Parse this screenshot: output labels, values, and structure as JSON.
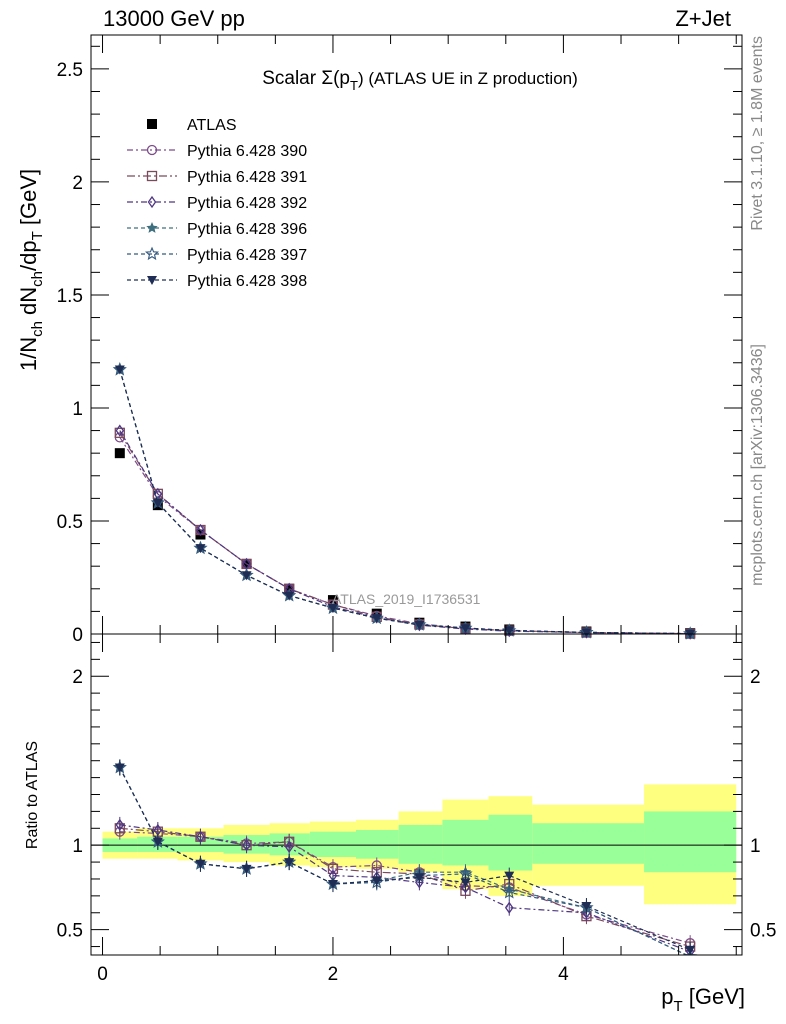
{
  "header": {
    "energy": "13000 GeV pp",
    "process": "Z+Jet",
    "title": "Scalar Σ(p_T) (ATLAS UE in Z production)",
    "title_main": "Scalar Σ(p",
    "title_sub": "T",
    "title_tail": ") (ATLAS UE in Z production)",
    "rivet": "Rivet 3.1.10, ≥ 1.8M events",
    "mcplots": "mcplots.cern.ch [arXiv:1306.3436]",
    "watermark": "ATLAS_2019_I1736531"
  },
  "colors": {
    "data": "#000000",
    "p390": "#7d4b8c",
    "p391": "#7a4a5c",
    "p392": "#4e3682",
    "p396": "#3e6f7f",
    "p397": "#355a7e",
    "p398": "#1f2d55",
    "band_outer": "#ffff7f",
    "band_inner": "#99ff99"
  },
  "chart_data": [
    {
      "type": "line",
      "panel": "main",
      "ylabel": "1/N_ch dN_ch/dp_T [GeV]",
      "ylabel_parts": [
        "1/N",
        "ch",
        " dN",
        "ch",
        "/dp",
        "T",
        " [GeV]"
      ],
      "xlabel": "p_T [GeV]",
      "xlabel_parts": [
        "p",
        "T",
        " [GeV]"
      ],
      "xlim": [
        -0.1,
        5.55
      ],
      "ylim": [
        0,
        2.65
      ],
      "xticks": [
        0,
        2,
        4
      ],
      "xtick_labels": [
        "0",
        "2",
        "4"
      ],
      "yticks": [
        0,
        0.5,
        1,
        1.5,
        2,
        2.5
      ],
      "ytick_labels": [
        "0",
        "0.5",
        "1",
        "1.5",
        "2",
        "2.5"
      ],
      "x": [
        0.15,
        0.48,
        0.85,
        1.25,
        1.62,
        2.0,
        2.38,
        2.75,
        3.15,
        3.53,
        4.2,
        5.1
      ],
      "series": [
        {
          "name": "ATLAS",
          "key": "data",
          "marker": "square",
          "values": [
            0.8,
            0.57,
            0.44,
            0.31,
            0.2,
            0.15,
            0.09,
            0.05,
            0.033,
            0.02,
            0.011,
            0.004
          ]
        },
        {
          "name": "Pythia 6.428 390",
          "key": "p390",
          "marker": "circle-open",
          "dash": "6,3,2,3",
          "values": [
            0.87,
            0.61,
            0.46,
            0.31,
            0.2,
            0.13,
            0.08,
            0.045,
            0.025,
            0.014,
            0.0065,
            0.0017
          ]
        },
        {
          "name": "Pythia 6.428 391",
          "key": "p391",
          "marker": "square-open",
          "dash": "8,3,2,3",
          "values": [
            0.89,
            0.62,
            0.46,
            0.31,
            0.2,
            0.13,
            0.076,
            0.042,
            0.024,
            0.015,
            0.0064,
            0.0016
          ]
        },
        {
          "name": "Pythia 6.428 392",
          "key": "p392",
          "marker": "diamond-open",
          "dash": "6,3,2,3",
          "values": [
            0.9,
            0.62,
            0.46,
            0.31,
            0.2,
            0.12,
            0.073,
            0.039,
            0.022,
            0.0126,
            0.0066,
            0.0015
          ]
        },
        {
          "name": "Pythia 6.428 396",
          "key": "p396",
          "marker": "star-filled",
          "dash": "4,3",
          "values": [
            1.17,
            0.58,
            0.38,
            0.26,
            0.17,
            0.115,
            0.071,
            0.042,
            0.027,
            0.0148,
            0.007,
            0.0014
          ]
        },
        {
          "name": "Pythia 6.428 397",
          "key": "p397",
          "marker": "star-open",
          "dash": "4,3",
          "values": [
            1.17,
            0.58,
            0.38,
            0.26,
            0.17,
            0.115,
            0.07,
            0.041,
            0.026,
            0.0144,
            0.007,
            0.0014
          ]
        },
        {
          "name": "Pythia 6.428 398",
          "key": "p398",
          "marker": "triangle-down-filled",
          "dash": "4,3",
          "values": [
            1.17,
            0.58,
            0.38,
            0.26,
            0.17,
            0.115,
            0.07,
            0.04,
            0.026,
            0.0164,
            0.0072,
            0.0015
          ]
        }
      ]
    },
    {
      "type": "line",
      "panel": "ratio",
      "ylabel": "Ratio to ATLAS",
      "xlim": [
        -0.1,
        5.55
      ],
      "ylim": [
        0.35,
        2.25
      ],
      "yticks": [
        0.5,
        1,
        2
      ],
      "ytick_labels": [
        "0.5",
        "1",
        "2"
      ],
      "band_edges": [
        0.0,
        0.3,
        0.65,
        1.05,
        1.45,
        1.8,
        2.2,
        2.57,
        2.95,
        3.35,
        3.73,
        4.7,
        5.5
      ],
      "band_outer_lo": [
        0.92,
        0.92,
        0.91,
        0.9,
        0.88,
        0.87,
        0.86,
        0.84,
        0.74,
        0.7,
        0.76,
        0.65
      ],
      "band_outer_hi": [
        1.08,
        1.1,
        1.1,
        1.12,
        1.13,
        1.14,
        1.15,
        1.2,
        1.27,
        1.29,
        1.24,
        1.36
      ],
      "band_inner_lo": [
        0.96,
        0.96,
        0.96,
        0.95,
        0.94,
        0.93,
        0.92,
        0.89,
        0.88,
        0.85,
        0.89,
        0.84
      ],
      "band_inner_hi": [
        1.04,
        1.05,
        1.05,
        1.06,
        1.07,
        1.08,
        1.09,
        1.12,
        1.15,
        1.18,
        1.13,
        1.2
      ],
      "series": [
        {
          "name": "Pythia 6.428 390",
          "key": "p390",
          "marker": "circle-open",
          "dash": "6,3,2,3",
          "values": [
            1.08,
            1.07,
            1.05,
            1.01,
            1.02,
            0.87,
            0.88,
            0.84,
            0.76,
            0.75,
            0.59,
            0.42
          ]
        },
        {
          "name": "Pythia 6.428 391",
          "key": "p391",
          "marker": "square-open",
          "dash": "8,3,2,3",
          "values": [
            1.1,
            1.08,
            1.05,
            1.0,
            1.02,
            0.86,
            0.84,
            0.83,
            0.73,
            0.77,
            0.58,
            0.4
          ]
        },
        {
          "name": "Pythia 6.428 392",
          "key": "p392",
          "marker": "diamond-open",
          "dash": "6,3,2,3",
          "values": [
            1.12,
            1.09,
            1.05,
            1.0,
            0.99,
            0.82,
            0.81,
            0.78,
            0.75,
            0.63,
            0.6,
            0.37
          ]
        },
        {
          "name": "Pythia 6.428 396",
          "key": "p396",
          "marker": "star-filled",
          "dash": "4,3",
          "values": [
            1.46,
            1.02,
            0.89,
            0.86,
            0.9,
            0.77,
            0.79,
            0.84,
            0.84,
            0.74,
            0.63,
            0.34
          ]
        },
        {
          "name": "Pythia 6.428 397",
          "key": "p397",
          "marker": "star-open",
          "dash": "4,3",
          "values": [
            1.46,
            1.02,
            0.89,
            0.86,
            0.9,
            0.77,
            0.78,
            0.82,
            0.83,
            0.72,
            0.63,
            0.34
          ]
        },
        {
          "name": "Pythia 6.428 398",
          "key": "p398",
          "marker": "triangle-down-filled",
          "dash": "4,3",
          "values": [
            1.46,
            1.02,
            0.89,
            0.86,
            0.9,
            0.77,
            0.79,
            0.81,
            0.78,
            0.82,
            0.64,
            0.38
          ]
        }
      ]
    }
  ]
}
